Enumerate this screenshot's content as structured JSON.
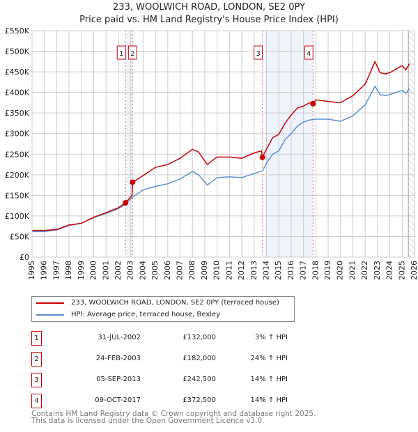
{
  "title": "233, WOOLWICH ROAD, LONDON, SE2 0PY",
  "subtitle": "Price paid vs. HM Land Registry's House Price Index (HPI)",
  "chart_data": {
    "type": "line",
    "title": "233, WOOLWICH ROAD, LONDON, SE2 0PY",
    "subtitle": "Price paid vs. HM Land Registry's House Price Index (HPI)",
    "xlim": [
      1995,
      2026
    ],
    "ylim": [
      0,
      550000
    ],
    "x_ticks": [
      "1995",
      "1996",
      "1997",
      "1998",
      "1999",
      "2000",
      "2001",
      "2002",
      "2003",
      "2004",
      "2005",
      "2006",
      "2007",
      "2008",
      "2009",
      "2010",
      "2011",
      "2012",
      "2013",
      "2014",
      "2015",
      "2016",
      "2017",
      "2018",
      "2019",
      "2020",
      "2021",
      "2022",
      "2023",
      "2024",
      "2025",
      "2026"
    ],
    "y_ticks": [
      {
        "v": 0,
        "label": "£0"
      },
      {
        "v": 50000,
        "label": "£50K"
      },
      {
        "v": 100000,
        "label": "£100K"
      },
      {
        "v": 150000,
        "label": "£150K"
      },
      {
        "v": 200000,
        "label": "£200K"
      },
      {
        "v": 250000,
        "label": "£250K"
      },
      {
        "v": 300000,
        "label": "£300K"
      },
      {
        "v": 350000,
        "label": "£350K"
      },
      {
        "v": 400000,
        "label": "£400K"
      },
      {
        "v": 450000,
        "label": "£450K"
      },
      {
        "v": 500000,
        "label": "£500K"
      },
      {
        "v": 550000,
        "label": "£550K"
      }
    ],
    "grid": true,
    "shaded_ranges": [
      [
        2002.58,
        2003.15
      ],
      [
        2013.9,
        2017.77
      ]
    ],
    "future_hatch_from": 2025.5,
    "series": [
      {
        "name": "233, WOOLWICH ROAD, LONDON, SE2 0PY (terraced house)",
        "color": "#cc0000",
        "x": [
          1995,
          1996,
          1997,
          1998,
          1999,
          2000,
          2001,
          2002,
          2002.58,
          2003.1,
          2003.15,
          2004,
          2005,
          2006,
          2007,
          2008,
          2008.5,
          2009.2,
          2010,
          2011,
          2012,
          2013,
          2013.6,
          2013.67,
          2014,
          2014.5,
          2015,
          2015.5,
          2016,
          2016.5,
          2017,
          2017.5,
          2017.77,
          2018,
          2019,
          2020,
          2021,
          2022,
          2022.8,
          2023.2,
          2023.6,
          2024,
          2025,
          2025.3,
          2025.6
        ],
        "y": [
          65000,
          65000,
          67000,
          78000,
          82000,
          97000,
          108000,
          120000,
          132000,
          150000,
          182000,
          198000,
          218000,
          225000,
          240000,
          262000,
          255000,
          225000,
          243000,
          243000,
          240000,
          253000,
          258000,
          242500,
          262000,
          290000,
          298000,
          325000,
          345000,
          362000,
          367000,
          375000,
          372500,
          382000,
          378000,
          375000,
          392000,
          420000,
          475000,
          448000,
          445000,
          448000,
          465000,
          455000,
          470000
        ]
      },
      {
        "name": "HPI: Average price, terraced house, Bexley",
        "color": "#5b8fd4",
        "x": [
          1995,
          1996,
          1997,
          1998,
          1999,
          2000,
          2001,
          2002,
          2002.58,
          2003.15,
          2004,
          2005,
          2006,
          2007,
          2008,
          2008.5,
          2009.2,
          2010,
          2011,
          2012,
          2013,
          2013.7,
          2014,
          2014.5,
          2015,
          2015.5,
          2016,
          2016.5,
          2017,
          2017.5,
          2018,
          2019,
          2020,
          2021,
          2022,
          2022.8,
          2023.2,
          2023.6,
          2024,
          2025,
          2025.3,
          2025.6
        ],
        "y": [
          62000,
          62000,
          66000,
          77000,
          82000,
          96000,
          106000,
          118000,
          128000,
          146000,
          163000,
          172000,
          178000,
          190000,
          208000,
          200000,
          175000,
          193000,
          195000,
          193000,
          203000,
          210000,
          228000,
          250000,
          258000,
          285000,
          300000,
          318000,
          328000,
          333000,
          335000,
          335000,
          330000,
          343000,
          370000,
          415000,
          395000,
          392000,
          395000,
          405000,
          398000,
          410000
        ]
      }
    ],
    "markers": [
      {
        "label": "1",
        "x": 2002.58,
        "y": 132000
      },
      {
        "label": "2",
        "x": 2003.15,
        "y": 182000
      },
      {
        "label": "3",
        "x": 2013.67,
        "y": 242500
      },
      {
        "label": "4",
        "x": 2017.77,
        "y": 372500
      }
    ]
  },
  "legend": [
    {
      "label": "233, WOOLWICH ROAD, LONDON, SE2 0PY (terraced house)",
      "color": "#cc0000"
    },
    {
      "label": "HPI: Average price, terraced house, Bexley",
      "color": "#5b8fd4"
    }
  ],
  "transactions": [
    {
      "num": "1",
      "date": "31-JUL-2002",
      "price": "£132,000",
      "hpi": "3% ↑ HPI"
    },
    {
      "num": "2",
      "date": "24-FEB-2003",
      "price": "£182,000",
      "hpi": "24% ↑ HPI"
    },
    {
      "num": "3",
      "date": "05-SEP-2013",
      "price": "£242,500",
      "hpi": "14% ↑ HPI"
    },
    {
      "num": "4",
      "date": "09-OCT-2017",
      "price": "£372,500",
      "hpi": "14% ↑ HPI"
    }
  ],
  "footer": [
    "Contains HM Land Registry data © Crown copyright and database right 2025.",
    "This data is licensed under the Open Government Licence v3.0."
  ]
}
